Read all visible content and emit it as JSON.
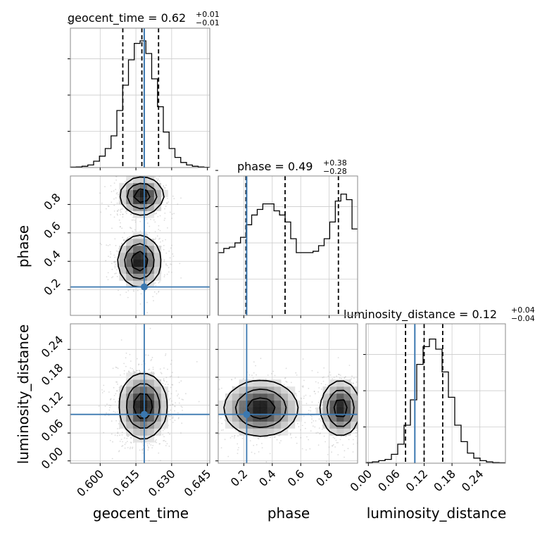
{
  "chart_data": {
    "type": "corner",
    "parameters": [
      "geocent_time",
      "phase",
      "luminosity_distance"
    ],
    "axis_labels": {
      "geocent_time": "geocent_time",
      "phase": "phase",
      "luminosity_distance": "luminosity_distance"
    },
    "truths": {
      "geocent_time": 0.6185,
      "phase": 0.22,
      "luminosity_distance": 0.1
    },
    "truth_color": "#3b78b0",
    "titles": [
      {
        "param": "geocent_time",
        "main": "geocent_time = 0.62",
        "sup": "+0.01",
        "sub": "−0.01"
      },
      {
        "param": "phase",
        "main": "phase = 0.49",
        "sup": "+0.38",
        "sub": "−0.28"
      },
      {
        "param": "luminosity_distance",
        "main": "luminosity_distance = 0.12",
        "sup": "+0.04",
        "sub": "−0.04"
      }
    ],
    "ranges": {
      "geocent_time": [
        0.5875,
        0.646
      ],
      "phase": [
        0.02,
        1.0
      ],
      "luminosity_distance": [
        -0.005,
        0.295
      ]
    },
    "ticks": {
      "geocent_time": {
        "values": [
          0.6,
          0.615,
          0.63,
          0.645
        ],
        "labels": [
          "0.600",
          "0.615",
          "0.630",
          "0.645"
        ]
      },
      "phase": {
        "values": [
          0.2,
          0.4,
          0.6,
          0.8
        ],
        "labels": [
          "0.2",
          "0.4",
          "0.6",
          "0.8"
        ]
      },
      "luminosity_distance": {
        "values": [
          0.0,
          0.06,
          0.12,
          0.18,
          0.24
        ],
        "labels": [
          "0.00",
          "0.06",
          "0.12",
          "0.18",
          "0.24"
        ]
      }
    },
    "histograms": {
      "geocent_time": {
        "edges_range": [
          0.5875,
          0.646
        ],
        "counts": [
          0.3,
          0.5,
          1,
          2,
          5,
          9,
          15,
          25,
          45,
          65,
          85,
          98,
          100,
          90,
          70,
          48,
          28,
          15,
          8,
          4,
          2,
          1,
          0.5,
          0.2
        ],
        "quantiles": [
          0.6095,
          0.6175,
          0.6245
        ],
        "ylim": [
          0,
          110
        ]
      },
      "phase": {
        "edges_range": [
          0.02,
          1.0
        ],
        "counts": [
          45,
          48,
          49,
          52,
          56,
          65,
          72,
          76,
          80,
          80,
          75,
          72,
          67,
          55,
          45,
          45,
          45,
          46,
          50,
          55,
          67,
          82,
          87,
          83,
          62
        ],
        "quantiles": [
          0.215,
          0.49,
          0.865
        ],
        "ylim": [
          0,
          100
        ]
      },
      "luminosity_distance": {
        "edges_range": [
          -0.005,
          0.295
        ],
        "counts": [
          0.5,
          1,
          2,
          3,
          7,
          15,
          30,
          50,
          78,
          92,
          98,
          90,
          72,
          52,
          30,
          17,
          8,
          4,
          2,
          1,
          0.5,
          0.3
        ],
        "quantiles": [
          0.08,
          0.12,
          0.16
        ],
        "ylim": [
          0,
          110
        ]
      }
    },
    "pairs": [
      {
        "x": "geocent_time",
        "y": "phase",
        "modes": [
          {
            "cx": 0.6175,
            "cy": 0.86,
            "sx": 0.0045,
            "sy": 0.065,
            "w": 1.0
          },
          {
            "cx": 0.6165,
            "cy": 0.4,
            "sx": 0.0045,
            "sy": 0.09,
            "w": 1.0
          }
        ]
      },
      {
        "x": "geocent_time",
        "y": "luminosity_distance",
        "modes": [
          {
            "cx": 0.618,
            "cy": 0.118,
            "sx": 0.005,
            "sy": 0.035,
            "w": 1.0
          }
        ]
      },
      {
        "x": "phase",
        "y": "luminosity_distance",
        "modes": [
          {
            "cx": 0.32,
            "cy": 0.113,
            "sx": 0.13,
            "sy": 0.03,
            "w": 1.0
          },
          {
            "cx": 0.88,
            "cy": 0.113,
            "sx": 0.07,
            "sy": 0.03,
            "w": 0.95
          }
        ]
      }
    ],
    "grid": true
  }
}
